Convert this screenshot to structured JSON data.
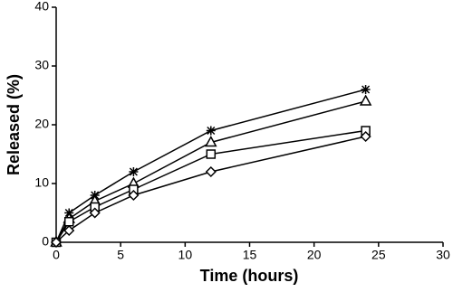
{
  "chart_data": {
    "type": "line",
    "x_label": "Time (hours)",
    "y_label": "Released (%)",
    "x": [
      0,
      1,
      3,
      6,
      12,
      24
    ],
    "series": [
      {
        "color": "#000000",
        "marker": "asterisk",
        "values": [
          0,
          5,
          8,
          12,
          19,
          26
        ]
      },
      {
        "color": "#000000",
        "marker": "triangle",
        "values": [
          0,
          4,
          7,
          10,
          17,
          24
        ]
      },
      {
        "color": "#000000",
        "marker": "square",
        "values": [
          0,
          3.5,
          6,
          9,
          15,
          19
        ]
      },
      {
        "color": "#000000",
        "marker": "diamond",
        "values": [
          0,
          2,
          5,
          8,
          12,
          18
        ]
      }
    ],
    "xlim": [
      0,
      30
    ],
    "xticks": [
      0,
      5,
      10,
      15,
      20,
      25,
      30
    ],
    "ylim": [
      0,
      40
    ],
    "yticks": [
      0,
      10,
      20,
      30,
      40
    ],
    "grid": false
  }
}
